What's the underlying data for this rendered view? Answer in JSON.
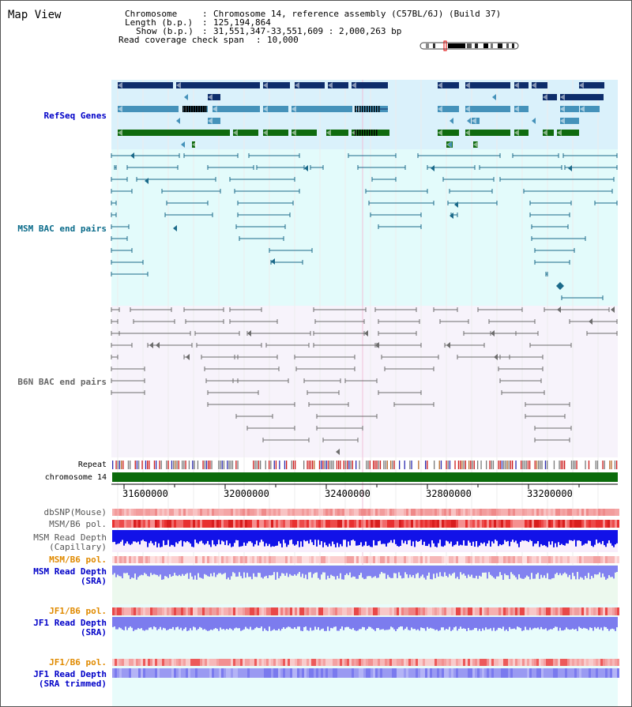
{
  "page": {
    "title": "Map View"
  },
  "info": {
    "chromosome_key": "Chromosome",
    "chromosome_value": "Chromosome 14, reference assembly (C57BL/6J) (Build 37)",
    "length_key": "Length (b.p.)",
    "length_value": "125,194,864",
    "show_key": "Show (b.p.)",
    "show_value": "31,551,347-33,551,609 : 2,000,263 bp",
    "coverage_key": "Read coverage check span",
    "coverage_value": "10,000"
  },
  "tracks": {
    "refseq": "RefSeq Genes",
    "msm_bac": "MSM BAC end pairs",
    "b6n_bac": "B6N BAC end pairs",
    "repeat": "Repeat",
    "chromosome": "chromosome 14",
    "dbsnp": "dbSNP(Mouse)",
    "msm_b6_pol": "MSM/B6 pol.",
    "msm_depth_cap_1": "MSM Read Depth",
    "msm_depth_cap_2": "(Capillary)",
    "msm_b6_pol_2": "MSM/B6 pol.",
    "msm_depth_sra_1": "MSM Read Depth",
    "msm_depth_sra_2": "(SRA)",
    "jf1_b6_pol": "JF1/B6 pol.",
    "jf1_depth_sra_1": "JF1 Read Depth",
    "jf1_depth_sra_2": "(SRA)",
    "jf1_b6_pol_2": "JF1/B6 pol.",
    "jf1_depth_trim_1": "JF1 Read Depth",
    "jf1_depth_trim_2": "(SRA trimmed)"
  },
  "axis": {
    "ticks": [
      "31600000",
      "32000000",
      "32400000",
      "32800000",
      "33200000"
    ]
  },
  "colors": {
    "refseq_bg": "#daf1fb",
    "msm_bac_bg": "#e3fbfb",
    "b6n_bg": "#f7f3fb",
    "gene_dark": "#0e2d6b",
    "gene_mid": "#4592ba",
    "gene_green": "#0f6b0f",
    "msm_pair": "#1b6a8a",
    "b6n_pair": "#6d6d6d",
    "chrom_green": "#0b6b0b",
    "label_blue": "#0000c8",
    "label_teal": "#0a6b8a",
    "label_orange": "#e08a00",
    "label_gray": "#555555"
  }
}
